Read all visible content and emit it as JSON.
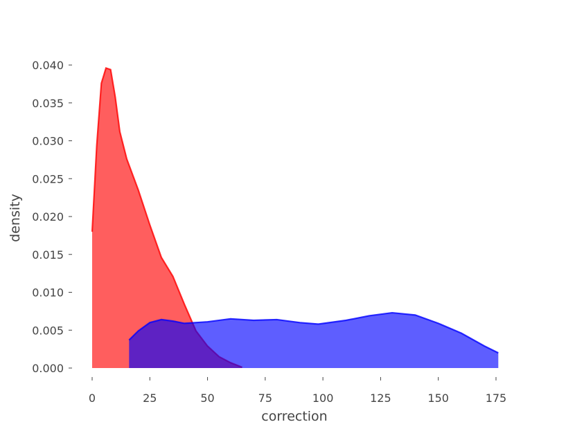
{
  "chart_data": {
    "type": "area",
    "xlabel": "correction",
    "ylabel": "density",
    "xlim": [
      0,
      176
    ],
    "ylim": [
      0,
      0.04
    ],
    "xticks": [
      0,
      25,
      50,
      75,
      100,
      125,
      150,
      175
    ],
    "yticks": [
      {
        "value": 0,
        "label": "0.000"
      },
      {
        "value": 0.005,
        "label": "0.005"
      },
      {
        "value": 0.01,
        "label": "0.010"
      },
      {
        "value": 0.015,
        "label": "0.015"
      },
      {
        "value": 0.02,
        "label": "0.020"
      },
      {
        "value": 0.025,
        "label": "0.025"
      },
      {
        "value": 0.03,
        "label": "0.030"
      },
      {
        "value": 0.035,
        "label": "0.035"
      },
      {
        "value": 0.04,
        "label": "0.040"
      }
    ],
    "grid": false,
    "series": [
      {
        "color": "#ff0000",
        "x": [
          0,
          2,
          4,
          6,
          8,
          10,
          12,
          15,
          20,
          25,
          30,
          35,
          40,
          45,
          50,
          55,
          60,
          65
        ],
        "values": [
          0.018,
          0.0294,
          0.0376,
          0.0396,
          0.0394,
          0.0358,
          0.0312,
          0.0276,
          0.0235,
          0.0189,
          0.0146,
          0.0121,
          0.0084,
          0.0049,
          0.0029,
          0.0015,
          0.0007,
          0.0001
        ]
      },
      {
        "color": "#0000ff",
        "x": [
          16,
          20,
          25,
          30,
          35,
          40,
          50,
          60,
          70,
          80,
          90,
          98,
          110,
          120,
          130,
          140,
          150,
          160,
          170,
          176
        ],
        "values": [
          0.0037,
          0.0049,
          0.006,
          0.0064,
          0.0062,
          0.0059,
          0.0061,
          0.0065,
          0.0063,
          0.0064,
          0.006,
          0.0058,
          0.0063,
          0.0069,
          0.0073,
          0.007,
          0.0059,
          0.0046,
          0.0029,
          0.002
        ]
      }
    ]
  }
}
